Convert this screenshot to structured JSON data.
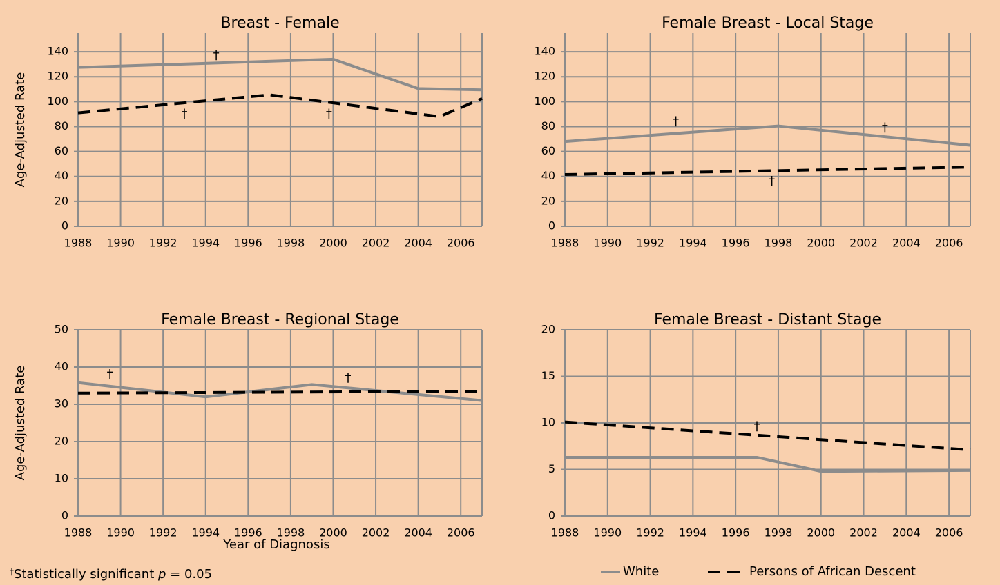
{
  "chart_data": [
    {
      "type": "line",
      "title": "Breast - Female",
      "y_label": "Age-Adjusted Rate",
      "xlim": [
        1988,
        2007
      ],
      "xticks": [
        1988,
        1990,
        1992,
        1994,
        1996,
        1998,
        2000,
        2002,
        2004,
        2006
      ],
      "ylim": [
        0,
        155
      ],
      "yticks": [
        0,
        20,
        40,
        60,
        80,
        100,
        120,
        140
      ],
      "grid": true,
      "series": [
        {
          "name": "White",
          "color": "#8c8c8c",
          "dash": false,
          "x": [
            1988,
            2000,
            2004,
            2007
          ],
          "values": [
            127.5,
            134,
            110.5,
            109.5
          ]
        },
        {
          "name": "Persons of African Descent",
          "color": "#000000",
          "dash": true,
          "x": [
            1988,
            1997,
            2000,
            2005,
            2007
          ],
          "values": [
            91,
            105.5,
            99,
            88,
            102.5
          ]
        }
      ],
      "annotations": [
        {
          "text": "†",
          "x": 1994.5,
          "y": 137
        },
        {
          "text": "†",
          "x": 1993,
          "y": 90
        },
        {
          "text": "†",
          "x": 1999.8,
          "y": 90
        }
      ]
    },
    {
      "type": "line",
      "title": "Female Breast - Local Stage",
      "xlim": [
        1988,
        2007
      ],
      "xticks": [
        1988,
        1990,
        1992,
        1994,
        1996,
        1998,
        2000,
        2002,
        2004,
        2006
      ],
      "ylim": [
        0,
        155
      ],
      "yticks": [
        0,
        20,
        40,
        60,
        80,
        100,
        120,
        140
      ],
      "grid": true,
      "series": [
        {
          "name": "White",
          "color": "#8c8c8c",
          "dash": false,
          "x": [
            1988,
            1998,
            2007
          ],
          "values": [
            68,
            80.5,
            65
          ]
        },
        {
          "name": "Persons of African Descent",
          "color": "#000000",
          "dash": true,
          "x": [
            1988,
            2007
          ],
          "values": [
            41.5,
            47.5
          ]
        }
      ],
      "annotations": [
        {
          "text": "†",
          "x": 1993.2,
          "y": 84
        },
        {
          "text": "†",
          "x": 1997.7,
          "y": 36
        },
        {
          "text": "†",
          "x": 2003,
          "y": 79
        }
      ]
    },
    {
      "type": "line",
      "title": "Female Breast - Regional Stage",
      "y_label": "Age-Adjusted Rate",
      "x_label": "Year of Diagnosis",
      "xlim": [
        1988,
        2007
      ],
      "xticks": [
        1988,
        1990,
        1992,
        1994,
        1996,
        1998,
        2000,
        2002,
        2004,
        2006
      ],
      "ylim": [
        0,
        50
      ],
      "yticks": [
        0,
        10,
        20,
        30,
        40,
        50
      ],
      "grid": true,
      "series": [
        {
          "name": "White",
          "color": "#8c8c8c",
          "dash": false,
          "x": [
            1988,
            1994,
            1999,
            2007
          ],
          "values": [
            35.8,
            32,
            35.3,
            31
          ]
        },
        {
          "name": "Persons of African Descent",
          "color": "#000000",
          "dash": true,
          "x": [
            1988,
            2007
          ],
          "values": [
            33,
            33.5
          ]
        }
      ],
      "annotations": [
        {
          "text": "†",
          "x": 1989.5,
          "y": 38
        },
        {
          "text": "†",
          "x": 2000.7,
          "y": 37
        }
      ]
    },
    {
      "type": "line",
      "title": "Female Breast - Distant Stage",
      "xlim": [
        1988,
        2007
      ],
      "xticks": [
        1988,
        1990,
        1992,
        1994,
        1996,
        1998,
        2000,
        2002,
        2004,
        2006
      ],
      "ylim": [
        0,
        20
      ],
      "yticks": [
        0,
        5,
        10,
        15,
        20
      ],
      "grid": true,
      "series": [
        {
          "name": "White",
          "color": "#8c8c8c",
          "dash": false,
          "x": [
            1988,
            1997,
            2000,
            2007
          ],
          "values": [
            6.3,
            6.3,
            4.8,
            4.9
          ]
        },
        {
          "name": "Persons of African Descent",
          "color": "#000000",
          "dash": true,
          "x": [
            1988,
            2007
          ],
          "values": [
            10.1,
            7.1
          ]
        }
      ],
      "annotations": [
        {
          "text": "†",
          "x": 1997,
          "y": 9.6
        }
      ]
    }
  ],
  "footnote": {
    "mark": "†",
    "text": "Statistically significant ",
    "symbol": "p",
    "rest": " = 0.05"
  }
}
